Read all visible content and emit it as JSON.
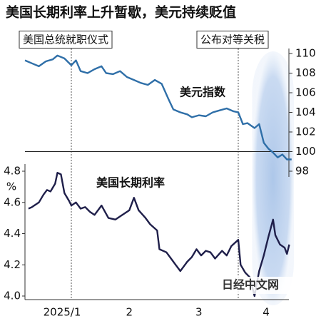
{
  "title": "美国长期利率上升暂歇，美元持续贬值",
  "watermark": "日经中文网",
  "chart_data": [
    {
      "type": "line",
      "xlim": [
        0,
        116
      ],
      "y2lim": [
        98,
        110
      ],
      "y2ticks": [
        98,
        100,
        102,
        104,
        106,
        108,
        110
      ],
      "ref_line": 100,
      "annotations": [
        {
          "text": "美国总统就职仪式",
          "x": 20
        },
        {
          "text": "公布对等关税",
          "x": 92
        }
      ],
      "highlight": [
        98,
        116
      ],
      "x": [
        0,
        3,
        6,
        9,
        12,
        14,
        17,
        20,
        22,
        24,
        27,
        30,
        33,
        35,
        38,
        41,
        44,
        47,
        50,
        53,
        56,
        59,
        62,
        64,
        67,
        70,
        72,
        75,
        78,
        81,
        84,
        87,
        90,
        92,
        94,
        96,
        99,
        101,
        103,
        105,
        107,
        109,
        111,
        113,
        115
      ],
      "series": [
        {
          "name": "美元指数",
          "color": "#2f6fa8",
          "axis": "y2",
          "values": [
            109.3,
            109.0,
            108.7,
            109.2,
            109.4,
            109.8,
            109.5,
            108.8,
            109.3,
            108.2,
            108.0,
            108.4,
            108.7,
            108.0,
            107.9,
            108.2,
            107.6,
            107.3,
            107.0,
            106.8,
            107.3,
            106.9,
            105.3,
            104.3,
            104.0,
            103.8,
            103.5,
            103.7,
            103.6,
            104.0,
            104.2,
            104.4,
            104.1,
            104.0,
            102.8,
            102.9,
            102.4,
            102.8,
            100.9,
            100.3,
            99.9,
            99.4,
            99.7,
            99.2,
            99.2
          ]
        }
      ]
    },
    {
      "type": "line",
      "xlim": [
        0,
        116
      ],
      "xticks": [
        {
          "value": 16,
          "label": "2025/1"
        },
        {
          "value": 45,
          "label": "2"
        },
        {
          "value": 75,
          "label": "3"
        },
        {
          "value": 104,
          "label": "4"
        }
      ],
      "ylim": [
        4.0,
        4.8
      ],
      "yticks": [
        {
          "value": 4.0,
          "label": "4.0"
        },
        4.2,
        4.4,
        4.6,
        4.8
      ],
      "unit": "%",
      "x": [
        1.5,
        3,
        6,
        8,
        9.5,
        11,
        13,
        14,
        15.5,
        17,
        19,
        20,
        22,
        24,
        26,
        28,
        30,
        33,
        36,
        39,
        42,
        45,
        47,
        49,
        52,
        54,
        57,
        58,
        61,
        63,
        65,
        67,
        70,
        72,
        74,
        76,
        78,
        80,
        82,
        85,
        87,
        89,
        92,
        93,
        95,
        97,
        99,
        101,
        103,
        105,
        107,
        108,
        110,
        112,
        113,
        114
      ],
      "series": [
        {
          "name": "美国长期利率",
          "color": "#1f1f4a",
          "values": [
            4.56,
            4.57,
            4.6,
            4.65,
            4.68,
            4.67,
            4.72,
            4.79,
            4.78,
            4.66,
            4.61,
            4.58,
            4.6,
            4.56,
            4.57,
            4.54,
            4.52,
            4.58,
            4.5,
            4.49,
            4.52,
            4.55,
            4.63,
            4.55,
            4.5,
            4.46,
            4.42,
            4.3,
            4.28,
            4.24,
            4.2,
            4.16,
            4.22,
            4.25,
            4.3,
            4.26,
            4.29,
            4.28,
            4.24,
            4.29,
            4.26,
            4.32,
            4.36,
            4.2,
            4.15,
            4.12,
            4.0,
            4.16,
            4.26,
            4.38,
            4.49,
            4.39,
            4.33,
            4.31,
            4.27,
            4.33
          ]
        }
      ]
    }
  ]
}
